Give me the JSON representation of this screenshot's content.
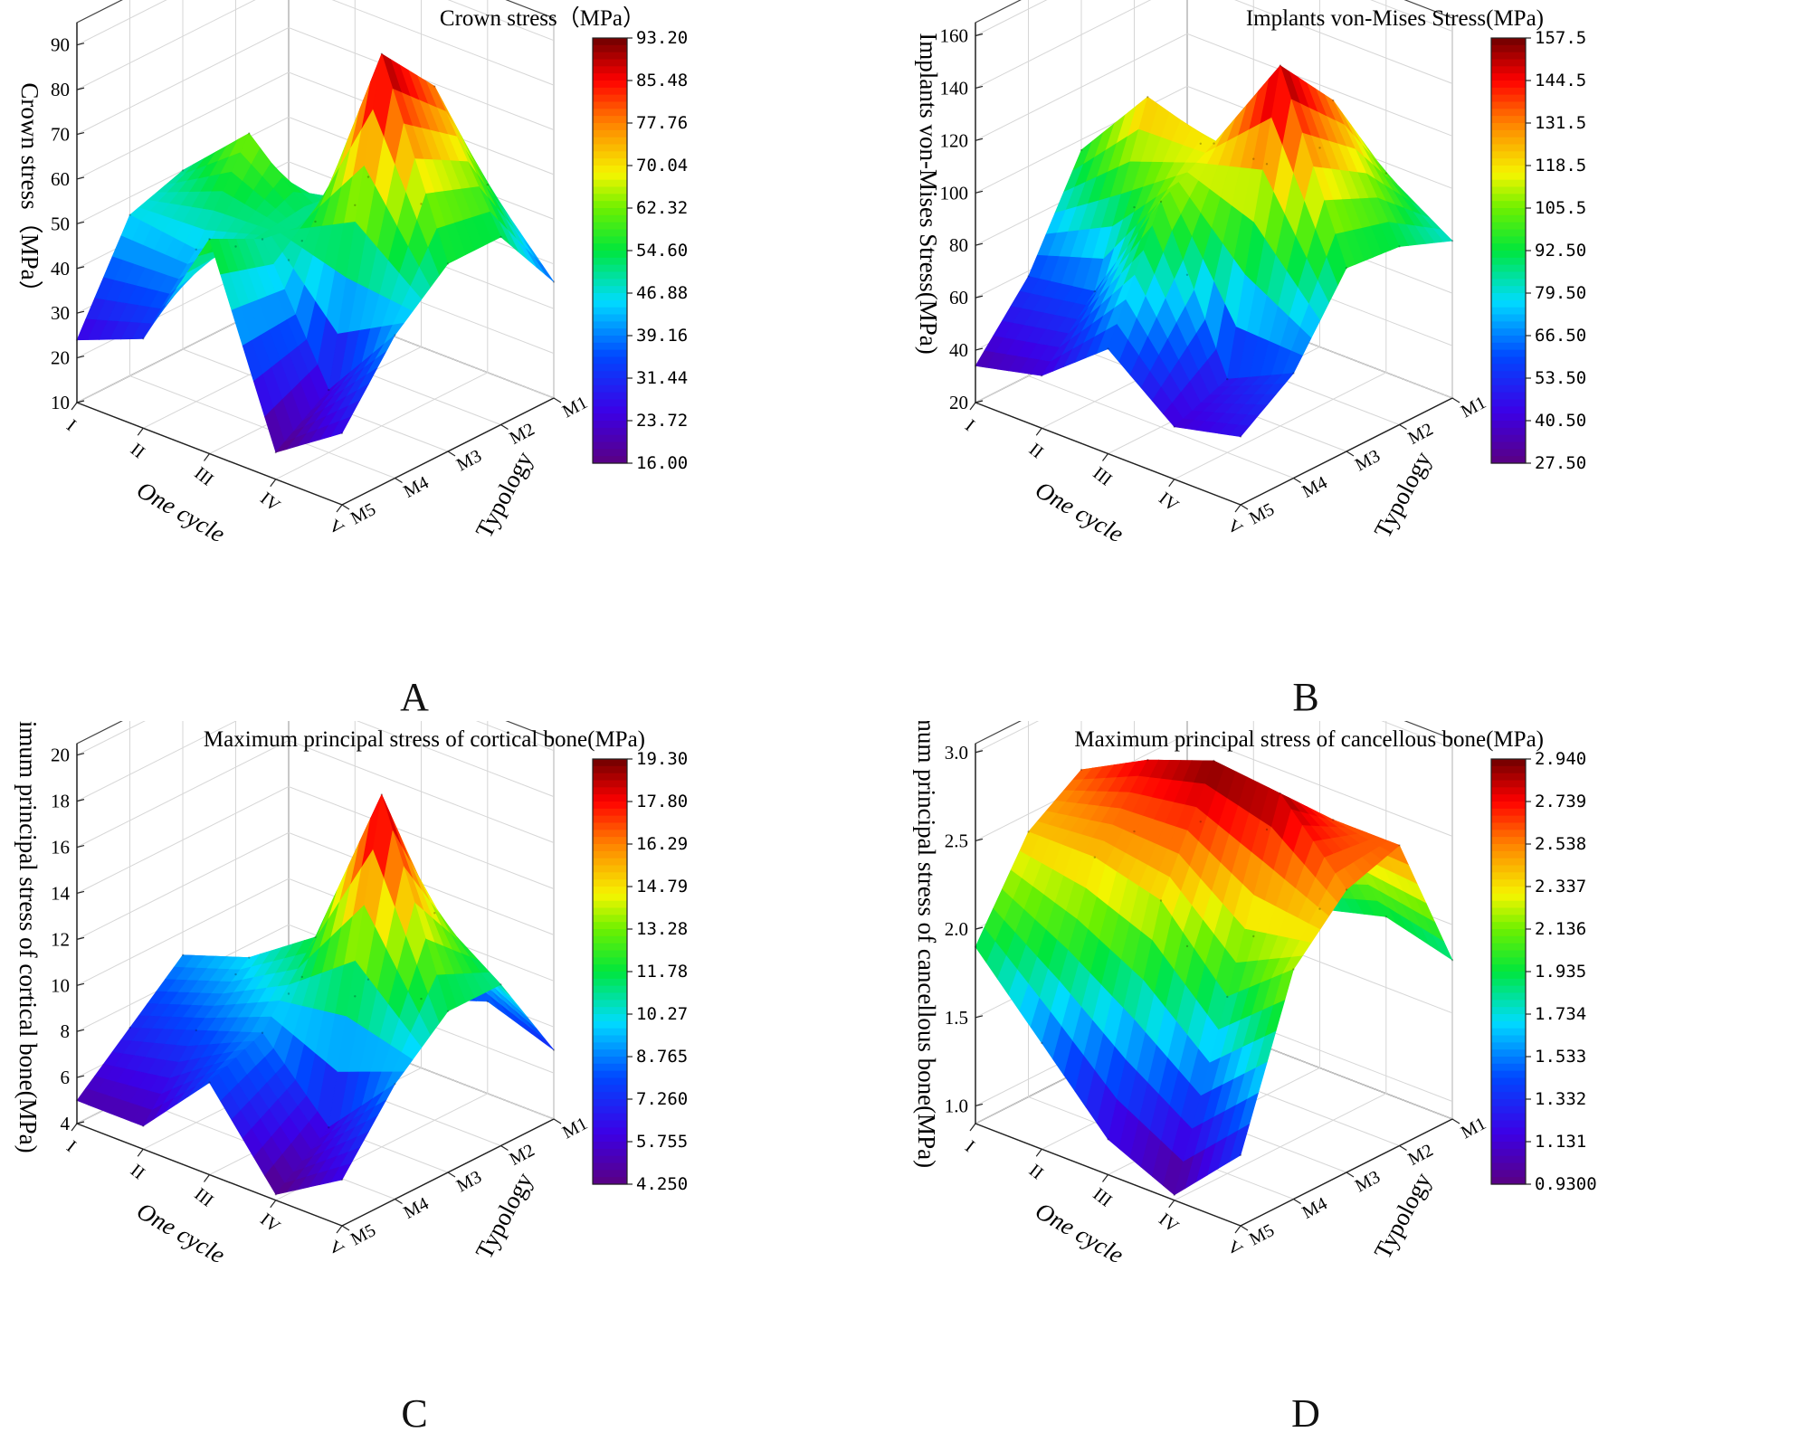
{
  "figure": {
    "x_axis_title": "One cycle",
    "y_axis_title": "Typology",
    "cycles": [
      "I",
      "II",
      "III",
      "IV",
      "V"
    ],
    "typologies": [
      "M1",
      "M2",
      "M3",
      "M4",
      "M5"
    ]
  },
  "chart_data": [
    {
      "type": "surface",
      "panel_label": "A",
      "title": "Crown stress（MPa）",
      "zlabel": "Crown stress（MPa）",
      "xlabel": "One cycle",
      "ylabel": "Typology",
      "x_categories": [
        "I",
        "II",
        "III",
        "IV",
        "V"
      ],
      "y_categories": [
        "M1",
        "M2",
        "M3",
        "M4",
        "M5"
      ],
      "zlim": [
        10,
        95
      ],
      "z_ticks": [
        "10",
        "20",
        "30",
        "40",
        "50",
        "60",
        "70",
        "80",
        "90"
      ],
      "z_tick_values": [
        10,
        20,
        30,
        40,
        50,
        60,
        70,
        80,
        90
      ],
      "colorbar_ticks": [
        "93.20",
        "85.48",
        "77.76",
        "70.04",
        "62.32",
        "54.60",
        "46.88",
        "39.16",
        "31.44",
        "23.72",
        "16.00"
      ],
      "colorbar_range": [
        16.0,
        93.2
      ],
      "values": [
        [
          18,
          27,
          50,
          46,
          24
        ],
        [
          36,
          34,
          64,
          44,
          30
        ],
        [
          42,
          54,
          50,
          52,
          58
        ],
        [
          52,
          80,
          93.2,
          24,
          16
        ],
        [
          36,
          52,
          52,
          42,
          26
        ]
      ]
    },
    {
      "type": "surface",
      "panel_label": "B",
      "title": "Implants von-Mises Stress(MPa)",
      "zlabel": "Implants von-Mises Stress(MPa)",
      "xlabel": "One cycle",
      "ylabel": "Typology",
      "x_categories": [
        "I",
        "II",
        "III",
        "IV",
        "V"
      ],
      "y_categories": [
        "M1",
        "M2",
        "M3",
        "M4",
        "M5"
      ],
      "zlim": [
        20,
        165
      ],
      "z_ticks": [
        "20",
        "40",
        "60",
        "80",
        "100",
        "120",
        "140",
        "160"
      ],
      "z_tick_values": [
        20,
        40,
        60,
        80,
        100,
        120,
        140,
        160
      ],
      "colorbar_ticks": [
        "157.5",
        "144.5",
        "131.5",
        "118.5",
        "105.5",
        "92.50",
        "79.50",
        "66.50",
        "53.50",
        "40.50",
        "27.50"
      ],
      "colorbar_range": [
        27.5,
        157.5
      ],
      "values": [
        [
          28,
          64,
          96,
          58,
          34
        ],
        [
          82,
          98,
          126,
          62,
          40
        ],
        [
          96,
          100,
          118,
          106,
          60
        ],
        [
          96,
          134,
          157.5,
          48,
          40
        ],
        [
          80,
          88,
          90,
          60,
          46
        ]
      ]
    },
    {
      "type": "surface",
      "panel_label": "C",
      "title": "Maximum principal stress of cortical bone(MPa)",
      "zlabel": "Maximum principal stress of cortical bone(MPa)",
      "xlabel": "One cycle",
      "ylabel": "Typology",
      "x_categories": [
        "I",
        "II",
        "III",
        "IV",
        "V"
      ],
      "y_categories": [
        "M1",
        "M2",
        "M3",
        "M4",
        "M5"
      ],
      "zlim": [
        4,
        20.5
      ],
      "z_ticks": [
        "4",
        "6",
        "8",
        "10",
        "12",
        "14",
        "16",
        "18",
        "20"
      ],
      "z_tick_values": [
        4,
        6,
        8,
        10,
        12,
        14,
        16,
        18,
        20
      ],
      "colorbar_ticks": [
        "19.30",
        "17.80",
        "16.29",
        "14.79",
        "13.28",
        "11.78",
        "10.27",
        "8.765",
        "7.260",
        "5.755",
        "4.250"
      ],
      "colorbar_range": [
        4.25,
        19.3
      ],
      "values": [
        [
          5,
          7,
          9,
          7,
          5
        ],
        [
          6,
          8,
          10,
          8,
          5
        ],
        [
          7,
          9,
          12,
          9,
          8
        ],
        [
          8,
          13,
          19.3,
          6,
          4.25
        ],
        [
          7,
          11,
          11,
          9,
          6
        ]
      ]
    },
    {
      "type": "surface",
      "panel_label": "D",
      "title": "Maximum principal stress of cancellous bone(MPa)",
      "zlabel": "Maximum principal stress of cancellous bone(MPa)",
      "xlabel": "One cycle",
      "ylabel": "Typology",
      "x_categories": [
        "I",
        "II",
        "III",
        "IV",
        "V"
      ],
      "y_categories": [
        "M1",
        "M2",
        "M3",
        "M4",
        "M5"
      ],
      "zlim": [
        0.9,
        3.05
      ],
      "z_ticks": [
        "1.0",
        "1.5",
        "2.0",
        "2.5",
        "3.0"
      ],
      "z_tick_values": [
        1.0,
        1.5,
        2.0,
        2.5,
        3.0
      ],
      "colorbar_ticks": [
        "2.940",
        "2.739",
        "2.538",
        "2.337",
        "2.136",
        "1.935",
        "1.734",
        "1.533",
        "1.332",
        "1.131",
        "0.9300"
      ],
      "colorbar_range": [
        0.93,
        2.94
      ],
      "values": [
        [
          1.3,
          2.1,
          2.6,
          2.4,
          1.9
        ],
        [
          1.5,
          2.3,
          2.8,
          2.4,
          1.5
        ],
        [
          1.8,
          2.4,
          2.94,
          2.3,
          1.1
        ],
        [
          1.9,
          2.6,
          2.9,
          1.9,
          0.93
        ],
        [
          1.8,
          2.6,
          2.5,
          2.2,
          1.3
        ]
      ]
    }
  ]
}
